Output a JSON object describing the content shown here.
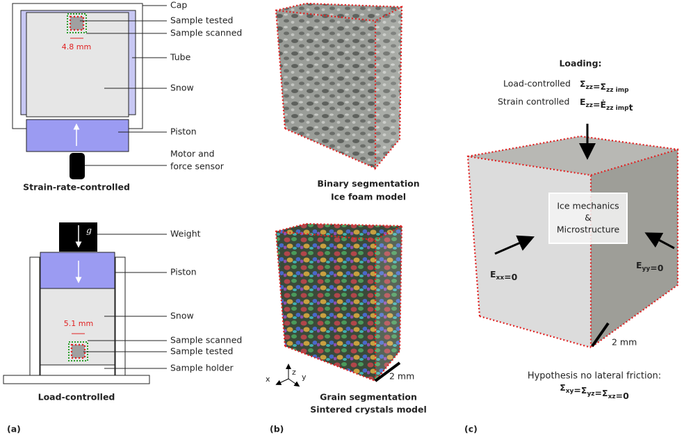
{
  "panel_a": {
    "label": "(a)",
    "top": {
      "cap": "Cap",
      "sample_tested": "Sample tested",
      "sample_scanned": "Sample scanned",
      "tube": "Tube",
      "snow": "Snow",
      "piston": "Piston",
      "motor_line1": "Motor and",
      "motor_line2": "force sensor",
      "dimension": "4.8 mm",
      "caption": "Strain-rate-controlled"
    },
    "bottom": {
      "g": "g",
      "weight": "Weight",
      "piston": "Piston",
      "snow": "Snow",
      "sample_scanned": "Sample scanned",
      "sample_tested": "Sample tested",
      "sample_holder": "Sample holder",
      "dimension": "5.1 mm",
      "caption": "Load-controlled"
    }
  },
  "panel_b": {
    "label": "(b)",
    "top_caption_1": "Binary segmentation",
    "top_caption_2": "Ice foam model",
    "bottom_caption_1": "Grain segmentation",
    "bottom_caption_2": "Sintered crystals model",
    "axis_z": "z",
    "axis_x": "x",
    "axis_y": "y",
    "scale": "2 mm"
  },
  "panel_c": {
    "label": "(c)",
    "loading": "Loading:",
    "load_controlled": "Load-controlled",
    "load_formula": [
      {
        "t": "Σ",
        "s": "zz"
      },
      {
        "t": "=Σ",
        "s": "zz imp"
      }
    ],
    "strain_controlled": "Strain controlled",
    "strain_formula": [
      {
        "t": "E",
        "s": "zz"
      },
      {
        "t": "=Ė",
        "s": "zz imp"
      },
      {
        "t": "t"
      }
    ],
    "box_1": "Ice mechanics",
    "box_2": "&",
    "box_3": "Microstructure",
    "exx": [
      {
        "t": "E",
        "s": "xx"
      },
      {
        "t": "=0"
      }
    ],
    "eyy": [
      {
        "t": "E",
        "s": "yy"
      },
      {
        "t": "=0"
      }
    ],
    "scale": "2 mm",
    "hypothesis": "Hypothesis no lateral friction:",
    "hypothesis_formula": [
      {
        "t": "Σ",
        "s": "xy"
      },
      {
        "t": "=Σ",
        "s": "yz"
      },
      {
        "t": "=Σ",
        "s": "xz"
      },
      {
        "t": "=0"
      }
    ]
  }
}
